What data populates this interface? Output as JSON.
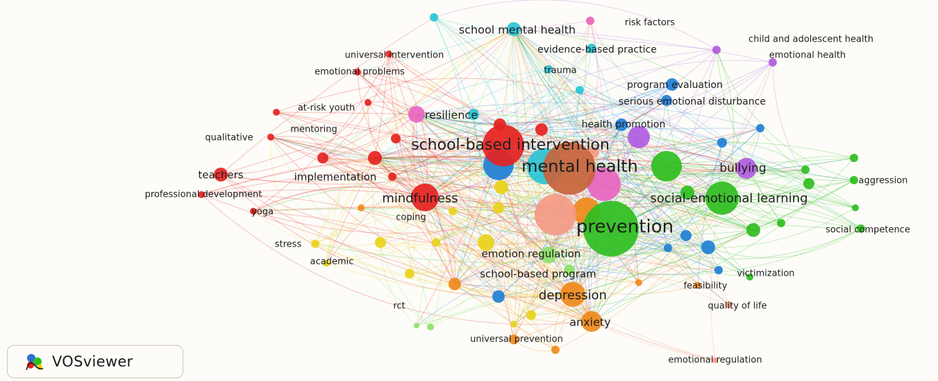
{
  "colors": {
    "red": "#e5231f",
    "green": "#2fbe1f",
    "blue": "#1f7fd6",
    "yellow": "#e8d21a",
    "purple": "#b05ce0",
    "cyan": "#2ac4d4",
    "orange": "#f08a1c",
    "brown": "#c8643c",
    "pink": "#e865c0",
    "salmon": "#f49a86",
    "lime": "#8fe06a"
  },
  "logo": {
    "text": "VOSviewer"
  },
  "nodes": [
    {
      "label": "mental health",
      "color": "brown",
      "weight": 10
    },
    {
      "label": "prevention",
      "color": "green",
      "weight": 10
    },
    {
      "label": "school-based intervention",
      "color": "red",
      "weight": 7
    },
    {
      "label": "social-emotional learning",
      "color": "green",
      "weight": 6
    },
    {
      "label": "mindfulness",
      "color": "red",
      "weight": 6
    },
    {
      "label": "depression",
      "color": "orange",
      "weight": 5
    },
    {
      "label": "anxiety",
      "color": "orange",
      "weight": 4
    },
    {
      "label": "bullying",
      "color": "purple",
      "weight": 4
    },
    {
      "label": "resilience",
      "color": "pink",
      "weight": 4
    },
    {
      "label": "school mental health",
      "color": "cyan",
      "weight": 3
    },
    {
      "label": "emotion regulation",
      "color": "lime",
      "weight": 3
    },
    {
      "label": "school-based program",
      "color": "orange",
      "weight": 3
    },
    {
      "label": "implementation",
      "color": "red",
      "weight": 3
    },
    {
      "label": "teachers",
      "color": "red",
      "weight": 3
    },
    {
      "label": "health promotion",
      "color": "blue",
      "weight": 2
    },
    {
      "label": "program evaluation",
      "color": "blue",
      "weight": 2
    },
    {
      "label": "serious emotional disturbance",
      "color": "blue",
      "weight": 2
    },
    {
      "label": "evidence-based practice",
      "color": "cyan",
      "weight": 2
    },
    {
      "label": "risk factors",
      "color": "pink",
      "weight": 2
    },
    {
      "label": "child and adolescent health",
      "color": "purple",
      "weight": 2
    },
    {
      "label": "emotional health",
      "color": "purple",
      "weight": 2
    },
    {
      "label": "trauma",
      "color": "cyan",
      "weight": 2
    },
    {
      "label": "universal intervention",
      "color": "red",
      "weight": 2
    },
    {
      "label": "emotional problems",
      "color": "red",
      "weight": 2
    },
    {
      "label": "at-risk youth",
      "color": "red",
      "weight": 2
    },
    {
      "label": "mentoring",
      "color": "red",
      "weight": 2
    },
    {
      "label": "qualitative",
      "color": "red",
      "weight": 2
    },
    {
      "label": "professional development",
      "color": "red",
      "weight": 2
    },
    {
      "label": "yoga",
      "color": "red",
      "weight": 2
    },
    {
      "label": "coping",
      "color": "yellow",
      "weight": 2
    },
    {
      "label": "stress",
      "color": "yellow",
      "weight": 2
    },
    {
      "label": "academic",
      "color": "yellow",
      "weight": 2
    },
    {
      "label": "aggression",
      "color": "green",
      "weight": 2
    },
    {
      "label": "social competence",
      "color": "green",
      "weight": 2
    },
    {
      "label": "victimization",
      "color": "blue",
      "weight": 2
    },
    {
      "label": "feasibility",
      "color": "orange",
      "weight": 2
    },
    {
      "label": "quality of life",
      "color": "salmon",
      "weight": 2
    },
    {
      "label": "rct",
      "color": "lime",
      "weight": 2
    },
    {
      "label": "universal prevention",
      "color": "orange",
      "weight": 2
    },
    {
      "label": "emotional regulation",
      "color": "salmon",
      "weight": 2
    }
  ]
}
